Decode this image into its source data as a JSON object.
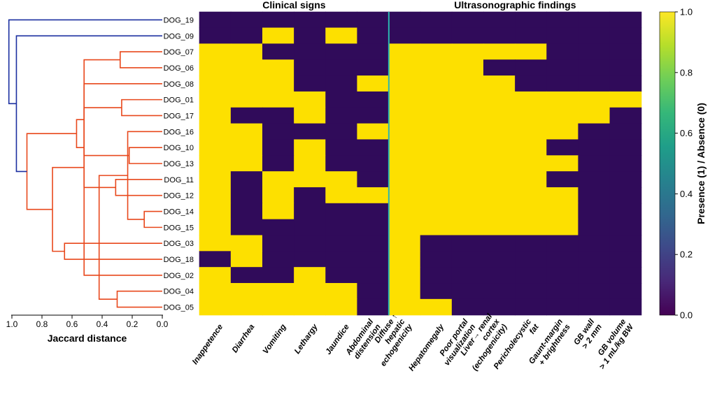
{
  "chart_data": {
    "type": "heatmap",
    "headers": [
      "Clinical signs",
      "Ultrasonographic findings"
    ],
    "rows": [
      "DOG_19",
      "DOG_09",
      "DOG_07",
      "DOG_06",
      "DOG_08",
      "DOG_01",
      "DOG_17",
      "DOG_16",
      "DOG_10",
      "DOG_13",
      "DOG_11",
      "DOG_12",
      "DOG_14",
      "DOG_15",
      "DOG_03",
      "DOG_18",
      "DOG_02",
      "DOG_04",
      "DOG_05"
    ],
    "columns": [
      {
        "lines": [
          "Inappetence"
        ]
      },
      {
        "lines": [
          "Diarrhea"
        ]
      },
      {
        "lines": [
          "Vomiting"
        ]
      },
      {
        "lines": [
          "Lethargy"
        ]
      },
      {
        "lines": [
          "Jaundice"
        ]
      },
      {
        "lines": [
          "Abdominal",
          "distension"
        ]
      },
      {
        "lines": [
          "Diffuse ↑",
          "hepatic",
          "echogenicity"
        ]
      },
      {
        "lines": [
          "Hepatomegaly"
        ]
      },
      {
        "lines": [
          "Poor portal",
          "visualization"
        ]
      },
      {
        "lines": [
          "Liver→ renal",
          "cortex",
          "(echogenicity)"
        ]
      },
      {
        "lines": [
          "Pericholecystic",
          "fat"
        ]
      },
      {
        "lines": [
          "Gaunt-margin",
          "+ brightness"
        ]
      },
      {
        "lines": [
          "GB wall",
          "> 2 mm"
        ]
      },
      {
        "lines": [
          "GB volume",
          "> 1 mL/kg BW"
        ]
      }
    ],
    "matrix": [
      [
        0,
        0,
        0,
        0,
        0,
        0,
        0,
        0,
        0,
        0,
        0,
        0,
        0,
        0
      ],
      [
        0,
        0,
        1,
        0,
        1,
        0,
        0,
        0,
        0,
        0,
        0,
        0,
        0,
        0
      ],
      [
        1,
        1,
        0,
        0,
        0,
        0,
        1,
        1,
        1,
        1,
        1,
        0,
        0,
        0
      ],
      [
        1,
        1,
        1,
        0,
        0,
        0,
        1,
        1,
        1,
        0,
        0,
        0,
        0,
        0
      ],
      [
        1,
        1,
        1,
        0,
        0,
        1,
        1,
        1,
        1,
        1,
        0,
        0,
        0,
        0
      ],
      [
        1,
        1,
        1,
        1,
        0,
        0,
        1,
        1,
        1,
        1,
        1,
        1,
        1,
        1
      ],
      [
        1,
        0,
        0,
        1,
        0,
        0,
        1,
        1,
        1,
        1,
        1,
        1,
        1,
        0
      ],
      [
        1,
        1,
        0,
        0,
        0,
        1,
        1,
        1,
        1,
        1,
        1,
        1,
        0,
        0
      ],
      [
        1,
        1,
        0,
        1,
        0,
        0,
        1,
        1,
        1,
        1,
        1,
        0,
        0,
        0
      ],
      [
        1,
        1,
        0,
        1,
        0,
        0,
        1,
        1,
        1,
        1,
        1,
        1,
        0,
        0
      ],
      [
        1,
        0,
        1,
        1,
        1,
        0,
        1,
        1,
        1,
        1,
        1,
        0,
        0,
        0
      ],
      [
        1,
        0,
        1,
        0,
        1,
        1,
        1,
        1,
        1,
        1,
        1,
        1,
        0,
        0
      ],
      [
        1,
        0,
        1,
        0,
        0,
        0,
        1,
        1,
        1,
        1,
        1,
        1,
        0,
        0
      ],
      [
        1,
        0,
        0,
        0,
        0,
        0,
        1,
        1,
        1,
        1,
        1,
        1,
        0,
        0
      ],
      [
        1,
        1,
        0,
        0,
        0,
        0,
        1,
        0,
        0,
        0,
        0,
        0,
        0,
        0
      ],
      [
        0,
        1,
        0,
        0,
        0,
        0,
        1,
        0,
        0,
        0,
        0,
        0,
        0,
        0
      ],
      [
        1,
        0,
        0,
        1,
        0,
        0,
        1,
        0,
        0,
        0,
        0,
        0,
        0,
        0
      ],
      [
        1,
        1,
        1,
        1,
        1,
        0,
        1,
        0,
        0,
        0,
        0,
        0,
        0,
        0
      ],
      [
        1,
        1,
        1,
        1,
        1,
        0,
        1,
        1,
        0,
        0,
        0,
        0,
        0,
        0
      ]
    ],
    "separator_after_column": 6,
    "dendrogram": {
      "xlabel": "Jaccard distance",
      "xlim": [
        1.0,
        0.0
      ],
      "ticks": [
        "1.0",
        "0.8",
        "0.6",
        "0.4",
        "0.2",
        "0.0"
      ],
      "tick_values": [
        1.0,
        0.8,
        0.6,
        0.4,
        0.2,
        0.0
      ],
      "links": [
        [
          2,
          3,
          0.28,
          "red"
        ],
        [
          8,
          9,
          0.22,
          "red"
        ],
        [
          12,
          13,
          0.12,
          "red"
        ],
        [
          17,
          18,
          0.3,
          "red"
        ],
        [
          4,
          20,
          0.52,
          "red"
        ],
        [
          5,
          6,
          0.27,
          "red"
        ],
        [
          7,
          21,
          0.23,
          "red"
        ],
        [
          10,
          11,
          0.31,
          "red"
        ],
        [
          22,
          25,
          0.42,
          "red"
        ],
        [
          26,
          24,
          0.52,
          "red"
        ],
        [
          23,
          28,
          0.57,
          "red"
        ],
        [
          14,
          15,
          0.65,
          "red"
        ],
        [
          16,
          19,
          0.52,
          "red"
        ],
        [
          30,
          31,
          0.73,
          "red"
        ],
        [
          29,
          32,
          0.9,
          "red"
        ],
        [
          1,
          33,
          0.97,
          "blue"
        ],
        [
          0,
          34,
          1.02,
          "blue"
        ]
      ]
    },
    "colorbar": {
      "label": "Presence (1) / Absence (0)",
      "range": [
        0.0,
        1.0
      ],
      "ticks": [
        "0.0",
        "0.2",
        "0.4",
        "0.6",
        "0.8",
        "1.0"
      ],
      "tick_values": [
        0.0,
        0.2,
        0.4,
        0.6,
        0.8,
        1.0
      ]
    },
    "colors": {
      "absent": "#300b5a",
      "present": "#fde000",
      "separator": "#2cb6b0",
      "cluster_red": "#e8481c",
      "cluster_blue": "#1b2fa0",
      "colormap": [
        "#440154",
        "#482878",
        "#3e4989",
        "#31688e",
        "#26828e",
        "#1f9e89",
        "#35b779",
        "#6ece58",
        "#b5de2b",
        "#fde725"
      ]
    }
  }
}
